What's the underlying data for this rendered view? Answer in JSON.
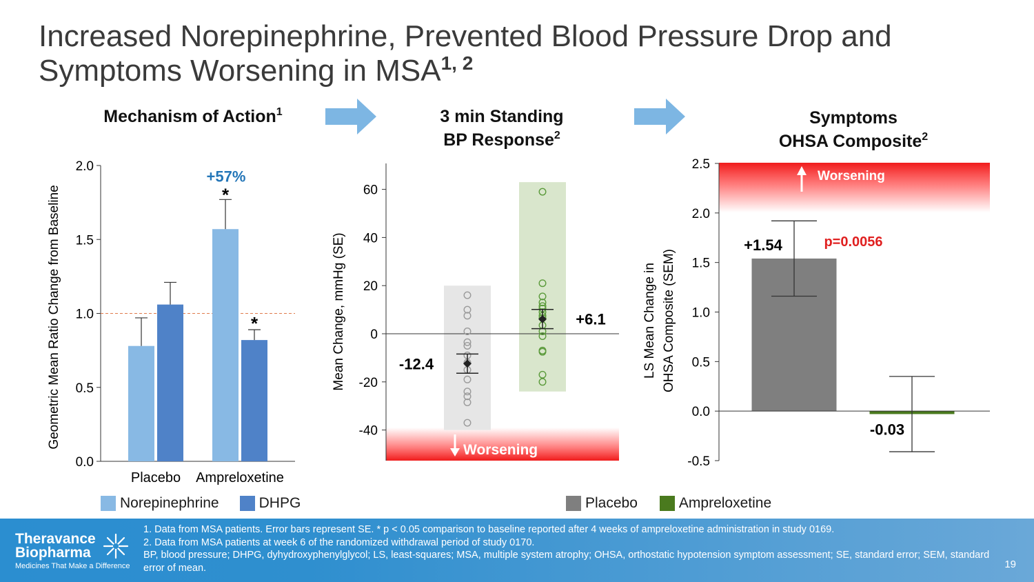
{
  "slide": {
    "title_main": "Increased Norepinephrine, Prevented Blood Pressure Drop and Symptoms Worsening in MSA",
    "title_sup": "1, 2",
    "page_number": "19"
  },
  "panels": {
    "left": {
      "heading": "Mechanism of Action",
      "sup": "1"
    },
    "middle": {
      "heading_line1": "3 min Standing",
      "heading_line2": "BP Response",
      "sup": "2"
    },
    "right": {
      "heading_line1": "Symptoms",
      "heading_line2": "OHSA Composite",
      "sup": "2"
    }
  },
  "colors": {
    "norepinephrine": "#88b9e4",
    "dhpg": "#4f82c8",
    "placebo": "#7f7f7f",
    "ampreloxetine": "#4a7a1e",
    "worsening_red": "#ef2b2b",
    "pvalue": "#e02020",
    "pct": "#2476b8",
    "arrow": "#7db6e3"
  },
  "chart_data": [
    {
      "type": "bar",
      "title": "Mechanism of Action",
      "ylabel": "Geometric Mean Ratio Change from Baseline",
      "ylim": [
        0,
        2.0
      ],
      "yticks": [
        "0.0",
        "0.5",
        "1.0",
        "1.5",
        "2.0"
      ],
      "reference_line": 1.0,
      "categories": [
        "Placebo",
        "Ampreloxetine"
      ],
      "series": [
        {
          "name": "Norepinephrine",
          "values": [
            0.78,
            1.57
          ],
          "errors": [
            0.19,
            0.2
          ]
        },
        {
          "name": "DHPG",
          "values": [
            1.06,
            0.82
          ],
          "errors": [
            0.15,
            0.07
          ]
        }
      ],
      "annotations": {
        "pct_label": "+57%",
        "star": "*"
      }
    },
    {
      "type": "scatter",
      "title": "3 min Standing BP Response",
      "ylabel": "Mean Change, mmHg (SE)",
      "ylim": [
        -52,
        70
      ],
      "yticks": [
        "-40",
        "-20",
        "0",
        "20",
        "40",
        "60"
      ],
      "groups": [
        {
          "name": "Placebo",
          "mean": -12.4,
          "se": 4.0,
          "mean_label": "-12.4",
          "range": [
            -40,
            20
          ],
          "points": [
            16,
            10,
            7.5,
            1,
            -3.5,
            -5,
            -9,
            -12,
            -15,
            -19,
            -24,
            -26,
            -28.5,
            -37
          ]
        },
        {
          "name": "Ampreloxetine",
          "mean": 6.1,
          "se": 4.0,
          "mean_label": "+6.1",
          "range": [
            -24,
            63
          ],
          "points": [
            59,
            21,
            15.5,
            13,
            11.5,
            10.5,
            9,
            7.5,
            6.5,
            3.5,
            1,
            -1,
            -7,
            -7.5,
            -17,
            -20
          ]
        }
      ],
      "worsening_label": "Worsening"
    },
    {
      "type": "bar",
      "title": "Symptoms OHSA Composite",
      "ylabel_line1": "LS Mean Change in",
      "ylabel_line2": "OHSA Composite (SEM)",
      "ylim": [
        -0.5,
        2.5
      ],
      "yticks": [
        "-0.5",
        "0.0",
        "0.5",
        "1.0",
        "1.5",
        "2.0",
        "2.5"
      ],
      "categories": [
        "Placebo",
        "Ampreloxetine"
      ],
      "values": [
        1.54,
        -0.03
      ],
      "errors": [
        0.38,
        0.38
      ],
      "value_labels": [
        "+1.54",
        "-0.03"
      ],
      "p_value": "p=0.0056",
      "worsening_label": "Worsening"
    }
  ],
  "legends": {
    "left": [
      "Norepinephrine",
      "DHPG"
    ],
    "right": [
      "Placebo",
      "Ampreloxetine"
    ]
  },
  "footer": {
    "logo_line1": "Theravance",
    "logo_line2": "Biopharma",
    "tagline": "Medicines That Make a Difference",
    "note1": "1. Data from MSA patients. Error bars represent SE. * p < 0.05 comparison to baseline reported after 4 weeks of ampreloxetine administration in study 0169.",
    "note2": "2. Data from MSA patients at week 6 of the randomized withdrawal period of study 0170.",
    "note3": "BP, blood pressure; DHPG, dyhydroxyphenylglycol; LS, least-squares; MSA, multiple system atrophy; OHSA, orthostatic hypotension symptom assessment; SE, standard error; SEM, standard error of mean."
  }
}
